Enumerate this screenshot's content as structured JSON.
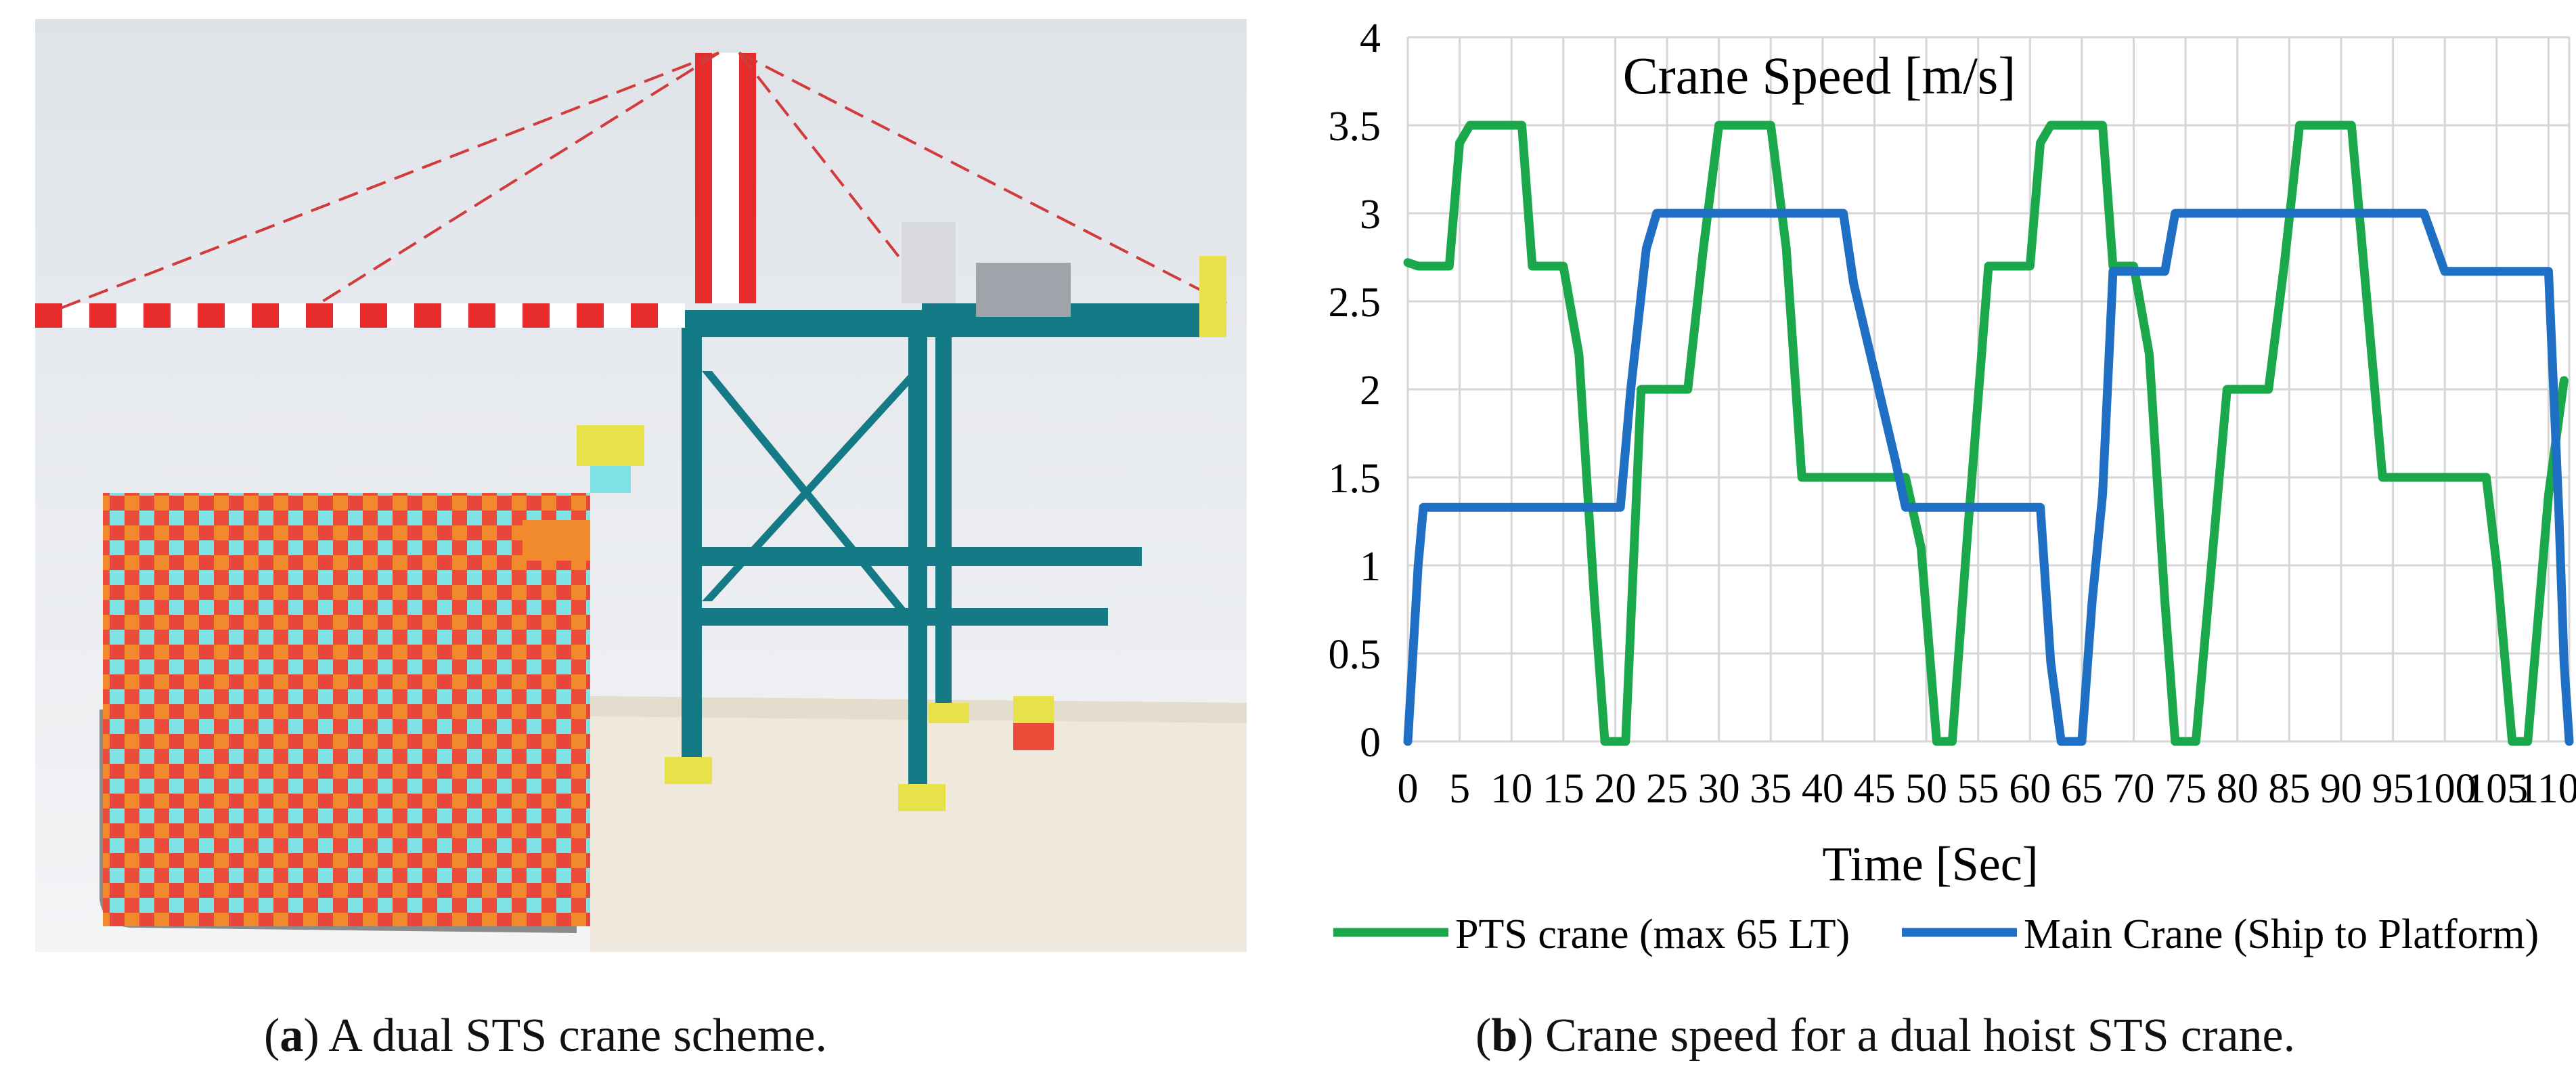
{
  "panel_a": {
    "caption_letter": "a",
    "caption_text": " A dual STS crane scheme."
  },
  "panel_b": {
    "caption_letter": "b",
    "caption_text": " Crane speed for a dual hoist STS crane."
  },
  "chart_data": {
    "type": "line",
    "title": "Crane Speed [m/s]",
    "xlabel": "Time [Sec]",
    "ylabel": "",
    "xlim": [
      0,
      112
    ],
    "ylim": [
      0,
      4
    ],
    "grid": true,
    "legend_position": "bottom",
    "x_ticks": [
      0,
      5,
      10,
      15,
      20,
      25,
      30,
      35,
      40,
      45,
      50,
      55,
      60,
      65,
      70,
      75,
      80,
      85,
      90,
      95,
      100,
      105,
      110
    ],
    "x_tick_labels": [
      "0",
      "5",
      "10",
      "15",
      "20",
      "25",
      "30",
      "35",
      "40",
      "45",
      "50",
      "55",
      "60",
      "65",
      "70",
      "75",
      "80",
      "85",
      "90",
      "95",
      "100",
      "105",
      "110"
    ],
    "y_ticks": [
      0,
      0.5,
      1,
      1.5,
      2,
      2.5,
      3,
      3.5,
      4
    ],
    "y_tick_labels": [
      "0",
      "0.5",
      "1",
      "1.5",
      "2",
      "2.5",
      "3",
      "3.5",
      "4"
    ],
    "series": [
      {
        "name": "PTS crane (max 65 LT)",
        "color": "#1aa84a",
        "points": [
          [
            0,
            2.72
          ],
          [
            1,
            2.7
          ],
          [
            4,
            2.7
          ],
          [
            5,
            3.4
          ],
          [
            6,
            3.5
          ],
          [
            11,
            3.5
          ],
          [
            12,
            2.7
          ],
          [
            15,
            2.7
          ],
          [
            16.5,
            2.2
          ],
          [
            18,
            0.8
          ],
          [
            19,
            0
          ],
          [
            21,
            0
          ],
          [
            22.5,
            2.0
          ],
          [
            27,
            2.0
          ],
          [
            28.5,
            2.8
          ],
          [
            30,
            3.5
          ],
          [
            35,
            3.5
          ],
          [
            36.5,
            2.8
          ],
          [
            38,
            1.5
          ],
          [
            48,
            1.5
          ],
          [
            49.5,
            1.1
          ],
          [
            51,
            0
          ],
          [
            52.5,
            0
          ],
          [
            54,
            1.2
          ],
          [
            56,
            2.7
          ],
          [
            57,
            2.7
          ],
          [
            60,
            2.7
          ],
          [
            61,
            3.4
          ],
          [
            62,
            3.5
          ],
          [
            67,
            3.5
          ],
          [
            68,
            2.7
          ],
          [
            70,
            2.7
          ],
          [
            71.5,
            2.2
          ],
          [
            73,
            0.8
          ],
          [
            74,
            0
          ],
          [
            76,
            0
          ],
          [
            77.5,
            1.0
          ],
          [
            79,
            2.0
          ],
          [
            83,
            2.0
          ],
          [
            84.5,
            2.7
          ],
          [
            86,
            3.5
          ],
          [
            91,
            3.5
          ],
          [
            92.5,
            2.5
          ],
          [
            94,
            1.5
          ],
          [
            104,
            1.5
          ],
          [
            105,
            1.0
          ],
          [
            106.5,
            0
          ],
          [
            108,
            0
          ],
          [
            110,
            1.4
          ],
          [
            111.5,
            2.05
          ]
        ]
      },
      {
        "name": "Main Crane (Ship to Platform)",
        "color": "#1f6fc4",
        "points": [
          [
            0,
            0
          ],
          [
            1,
            1.0
          ],
          [
            1.5,
            1.33
          ],
          [
            20.5,
            1.33
          ],
          [
            21.5,
            2.0
          ],
          [
            23,
            2.8
          ],
          [
            24,
            3.0
          ],
          [
            42,
            3.0
          ],
          [
            43,
            2.6
          ],
          [
            45,
            2.1
          ],
          [
            47,
            1.6
          ],
          [
            48,
            1.33
          ],
          [
            61,
            1.33
          ],
          [
            62,
            0.45
          ],
          [
            63,
            0
          ],
          [
            65,
            0
          ],
          [
            66,
            0.8
          ],
          [
            67,
            1.4
          ],
          [
            68,
            2.67
          ],
          [
            73,
            2.67
          ],
          [
            74,
            3.0
          ],
          [
            98,
            3.0
          ],
          [
            100,
            2.67
          ],
          [
            110,
            2.67
          ],
          [
            111,
            1.3
          ],
          [
            111.5,
            0.45
          ],
          [
            112,
            0
          ]
        ]
      }
    ]
  }
}
